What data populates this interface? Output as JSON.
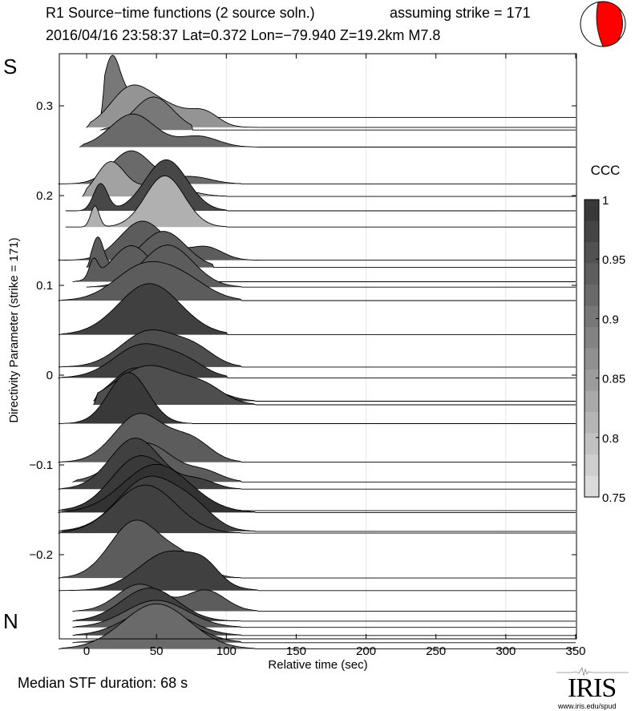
{
  "header": {
    "title": "R1 Source−time functions (2 source soln.)",
    "strike_note": "assuming strike = 171",
    "event_line": "2016/04/16 23:58:37  Lat=0.372 Lon=−79.940  Z=19.2km  M7.8",
    "beachball_icon": "focal-mechanism-beachball"
  },
  "labels": {
    "south": "S",
    "north": "N",
    "median": "Median STF duration: 68 s",
    "logo": "IRIS",
    "logo_url": "www.iris.edu/spud"
  },
  "colors": {
    "beachball_fill": "#ff0000",
    "grid": "#e6e6e6",
    "trace_outline": "#000000"
  },
  "chart_data": {
    "type": "area",
    "title": "R1 Source−time functions (2 source soln.)",
    "xlabel": "Relative time (sec)",
    "ylabel": "Directivity Parameter (strike = 171)",
    "xlim": [
      -20,
      350
    ],
    "ylim": [
      -0.285,
      0.36
    ],
    "xticks": [
      0,
      50,
      100,
      150,
      200,
      250,
      300,
      350
    ],
    "xtick_labels": [
      "0",
      "50",
      "100",
      "150",
      "200",
      "250",
      "300",
      "350"
    ],
    "yticks": [
      0.3,
      0.2,
      0.1,
      0,
      -0.1,
      -0.2
    ],
    "ytick_labels": [
      "0.3",
      "0.2",
      "0.1",
      "0",
      "−0.1",
      "−0.2"
    ],
    "grid_x": [
      100,
      200,
      300
    ],
    "colorbar": {
      "label": "CCC",
      "range": [
        0.75,
        1
      ],
      "ticks": [
        1,
        0.95,
        0.9,
        0.85,
        0.8,
        0.75
      ],
      "tick_labels": [
        "1",
        "0.95",
        "0.9",
        "0.85",
        "0.8",
        "0.75"
      ],
      "steps": 14
    },
    "traces": [
      {
        "d": 0.287,
        "t0": 10,
        "ccc": 0.9,
        "peaks": [
          [
            18,
            0.9,
            6
          ],
          [
            40,
            0.45,
            14
          ]
        ],
        "end": 48
      },
      {
        "d": 0.276,
        "t0": 0,
        "ccc": 0.86,
        "peaks": [
          [
            30,
            0.55,
            14
          ],
          [
            55,
            0.35,
            18
          ],
          [
            85,
            0.2,
            10
          ]
        ],
        "end": 112
      },
      {
        "d": 0.273,
        "t0": 10,
        "ccc": 0.9,
        "peaks": [
          [
            48,
            0.55,
            14
          ]
        ],
        "end": 65
      },
      {
        "d": 0.254,
        "t0": -5,
        "ccc": 0.92,
        "peaks": [
          [
            33,
            0.55,
            16
          ],
          [
            80,
            0.18,
            14
          ]
        ],
        "end": 112
      },
      {
        "d": 0.213,
        "t0": -20,
        "ccc": 0.92,
        "peaks": [
          [
            32,
            0.55,
            14
          ],
          [
            75,
            0.12,
            14
          ]
        ],
        "end": 100
      },
      {
        "d": 0.199,
        "t0": -3,
        "ccc": 0.84,
        "peaks": [
          [
            17,
            0.55,
            10
          ],
          [
            52,
            0.2,
            18
          ]
        ],
        "end": 90
      },
      {
        "d": 0.183,
        "t0": -15,
        "ccc": 0.97,
        "peaks": [
          [
            10,
            0.45,
            5
          ],
          [
            57,
            0.85,
            15
          ]
        ],
        "end": 90
      },
      {
        "d": 0.165,
        "t0": -15,
        "ccc": 0.82,
        "peaks": [
          [
            6,
            0.35,
            3
          ],
          [
            56,
            0.85,
            14
          ]
        ],
        "end": 90
      },
      {
        "d": 0.128,
        "t0": -20,
        "ccc": 0.94,
        "peaks": [
          [
            40,
            0.65,
            16
          ],
          [
            85,
            0.22,
            12
          ]
        ],
        "end": 115
      },
      {
        "d": 0.12,
        "t0": 0,
        "ccc": 0.94,
        "peaks": [
          [
            8,
            0.5,
            4
          ],
          [
            55,
            0.6,
            16
          ]
        ],
        "end": 80
      },
      {
        "d": 0.104,
        "t0": -10,
        "ccc": 0.94,
        "peaks": [
          [
            5,
            0.3,
            3
          ],
          [
            32,
            0.6,
            14
          ]
        ],
        "end": 75
      },
      {
        "d": 0.098,
        "t0": 0,
        "ccc": 0.94,
        "peaks": [
          [
            58,
            0.7,
            18
          ]
        ],
        "end": 100
      },
      {
        "d": 0.083,
        "t0": -20,
        "ccc": 0.94,
        "peaks": [
          [
            40,
            0.55,
            20
          ],
          [
            70,
            0.3,
            18
          ]
        ],
        "end": 100
      },
      {
        "d": 0.045,
        "t0": -20,
        "ccc": 0.98,
        "peaks": [
          [
            45,
            0.85,
            22
          ]
        ],
        "end": 90
      },
      {
        "d": 0.009,
        "t0": -20,
        "ccc": 0.96,
        "peaks": [
          [
            45,
            0.6,
            20
          ],
          [
            78,
            0.25,
            14
          ]
        ],
        "end": 100
      },
      {
        "d": -0.003,
        "t0": -20,
        "ccc": 0.98,
        "peaks": [
          [
            40,
            0.55,
            20
          ],
          [
            72,
            0.2,
            14
          ]
        ],
        "end": 90
      },
      {
        "d": -0.029,
        "t0": 5,
        "ccc": 0.98,
        "peaks": [
          [
            35,
            0.55,
            16
          ],
          [
            80,
            0.25,
            16
          ]
        ],
        "end": 110
      },
      {
        "d": -0.033,
        "t0": 5,
        "ccc": 0.96,
        "peaks": [
          [
            45,
            0.65,
            24
          ],
          [
            85,
            0.22,
            14
          ]
        ],
        "end": 110
      },
      {
        "d": -0.054,
        "t0": -20,
        "ccc": 0.99,
        "peaks": [
          [
            30,
            0.85,
            14
          ]
        ],
        "end": 65
      },
      {
        "d": -0.097,
        "t0": -20,
        "ccc": 0.94,
        "peaks": [
          [
            38,
            0.8,
            18
          ],
          [
            75,
            0.35,
            14
          ]
        ],
        "end": 100
      },
      {
        "d": -0.119,
        "t0": -10,
        "ccc": 0.94,
        "peaks": [
          [
            42,
            0.65,
            20
          ],
          [
            85,
            0.15,
            12
          ]
        ],
        "end": 100
      },
      {
        "d": -0.127,
        "t0": -20,
        "ccc": 0.98,
        "peaks": [
          [
            35,
            0.85,
            18
          ],
          [
            80,
            0.15,
            12
          ]
        ],
        "end": 100
      },
      {
        "d": -0.151,
        "t0": -20,
        "ccc": 0.99,
        "peaks": [
          [
            38,
            0.9,
            20
          ],
          [
            72,
            0.25,
            14
          ]
        ],
        "end": 100
      },
      {
        "d": -0.153,
        "t0": -20,
        "ccc": 1.0,
        "peaks": [
          [
            50,
            0.8,
            24
          ]
        ],
        "end": 110
      },
      {
        "d": -0.174,
        "t0": -20,
        "ccc": 0.98,
        "peaks": [
          [
            45,
            0.9,
            22
          ],
          [
            78,
            0.25,
            14
          ]
        ],
        "end": 110
      },
      {
        "d": -0.176,
        "t0": -20,
        "ccc": 0.98,
        "peaks": [
          [
            42,
            0.8,
            22
          ]
        ],
        "end": 100
      },
      {
        "d": -0.226,
        "t0": -20,
        "ccc": 0.94,
        "peaks": [
          [
            35,
            0.95,
            18
          ],
          [
            70,
            0.3,
            14
          ]
        ],
        "end": 100
      },
      {
        "d": -0.24,
        "t0": -20,
        "ccc": 0.98,
        "peaks": [
          [
            60,
            0.65,
            22
          ],
          [
            85,
            0.2,
            10
          ]
        ],
        "end": 112
      },
      {
        "d": -0.263,
        "t0": -10,
        "ccc": 0.94,
        "peaks": [
          [
            38,
            0.45,
            16
          ],
          [
            85,
            0.35,
            14
          ]
        ],
        "end": 112
      },
      {
        "d": -0.274,
        "t0": -10,
        "ccc": 0.98,
        "peaks": [
          [
            45,
            0.55,
            20
          ]
        ],
        "end": 100
      },
      {
        "d": -0.281,
        "t0": -10,
        "ccc": 0.94,
        "peaks": [
          [
            50,
            0.45,
            22
          ]
        ],
        "end": 100
      },
      {
        "d": -0.29,
        "t0": -10,
        "ccc": 0.96,
        "peaks": [
          [
            50,
            0.45,
            22
          ]
        ],
        "end": 100
      },
      {
        "d": -0.298,
        "t0": -10,
        "ccc": 0.94,
        "peaks": [
          [
            55,
            0.45,
            22
          ]
        ],
        "end": 100
      },
      {
        "d": -0.305,
        "t0": -20,
        "ccc": 0.92,
        "peaks": [
          [
            50,
            0.75,
            24
          ]
        ],
        "end": 110
      }
    ]
  }
}
